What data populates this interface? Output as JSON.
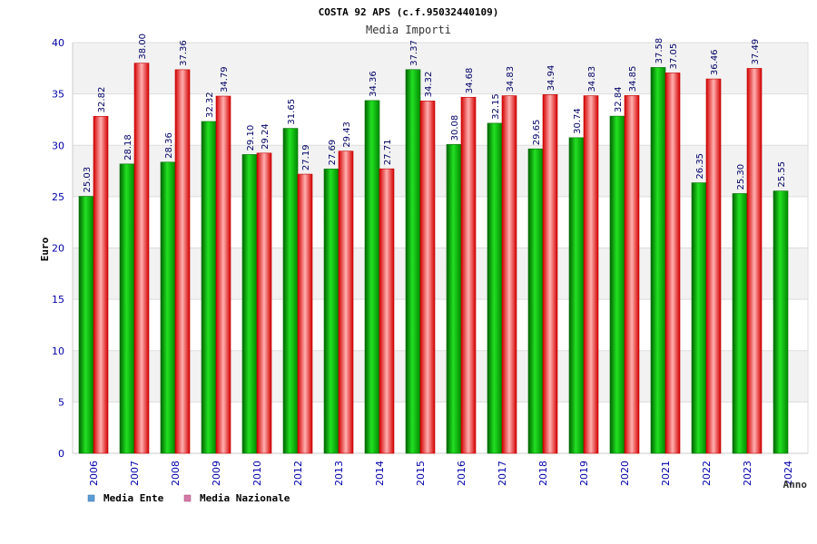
{
  "chart_data": {
    "type": "bar",
    "title": "COSTA 92 APS (c.f.95032440109)",
    "subtitle": "Media Importi",
    "xlabel": "Anno",
    "ylabel": "Euro",
    "ylim": [
      0,
      40
    ],
    "ytick_step": 5,
    "grid": true,
    "legend_position": "bottom-left",
    "categories": [
      "2006",
      "2007",
      "2008",
      "2009",
      "2010",
      "2012",
      "2013",
      "2014",
      "2015",
      "2016",
      "2017",
      "2018",
      "2019",
      "2020",
      "2021",
      "2022",
      "2023",
      "2024"
    ],
    "series": [
      {
        "name": "Media Ente",
        "color": "#00b000",
        "legend_color": "#5b9bd5",
        "values": [
          25.03,
          28.18,
          28.36,
          32.32,
          29.1,
          31.65,
          27.69,
          34.36,
          37.37,
          30.08,
          32.15,
          29.65,
          30.74,
          32.84,
          37.58,
          26.35,
          25.3,
          25.55
        ],
        "labels": [
          "25.03",
          "28.18",
          "28.36",
          "32.32",
          "29.10",
          "31.65",
          "27.69",
          "34.36",
          "37.37",
          "30.08",
          "32.15",
          "29.65",
          "30.74",
          "32.84",
          "37.58",
          "26.35",
          "25.30",
          "25.55"
        ]
      },
      {
        "name": "Media Nazionale",
        "color": "#e81818",
        "legend_color": "#d57aa8",
        "values": [
          32.82,
          38.0,
          37.36,
          34.79,
          29.24,
          27.19,
          29.43,
          27.71,
          34.32,
          34.68,
          34.83,
          34.94,
          34.83,
          34.85,
          37.05,
          36.46,
          37.49,
          null
        ],
        "labels": [
          "32.82",
          "38.00",
          "37.36",
          "34.79",
          "29.24",
          "27.19",
          "29.43",
          "27.71",
          "34.32",
          "34.68",
          "34.83",
          "34.94",
          "34.83",
          "34.85",
          "37.05",
          "36.46",
          "37.49",
          ""
        ]
      }
    ]
  }
}
